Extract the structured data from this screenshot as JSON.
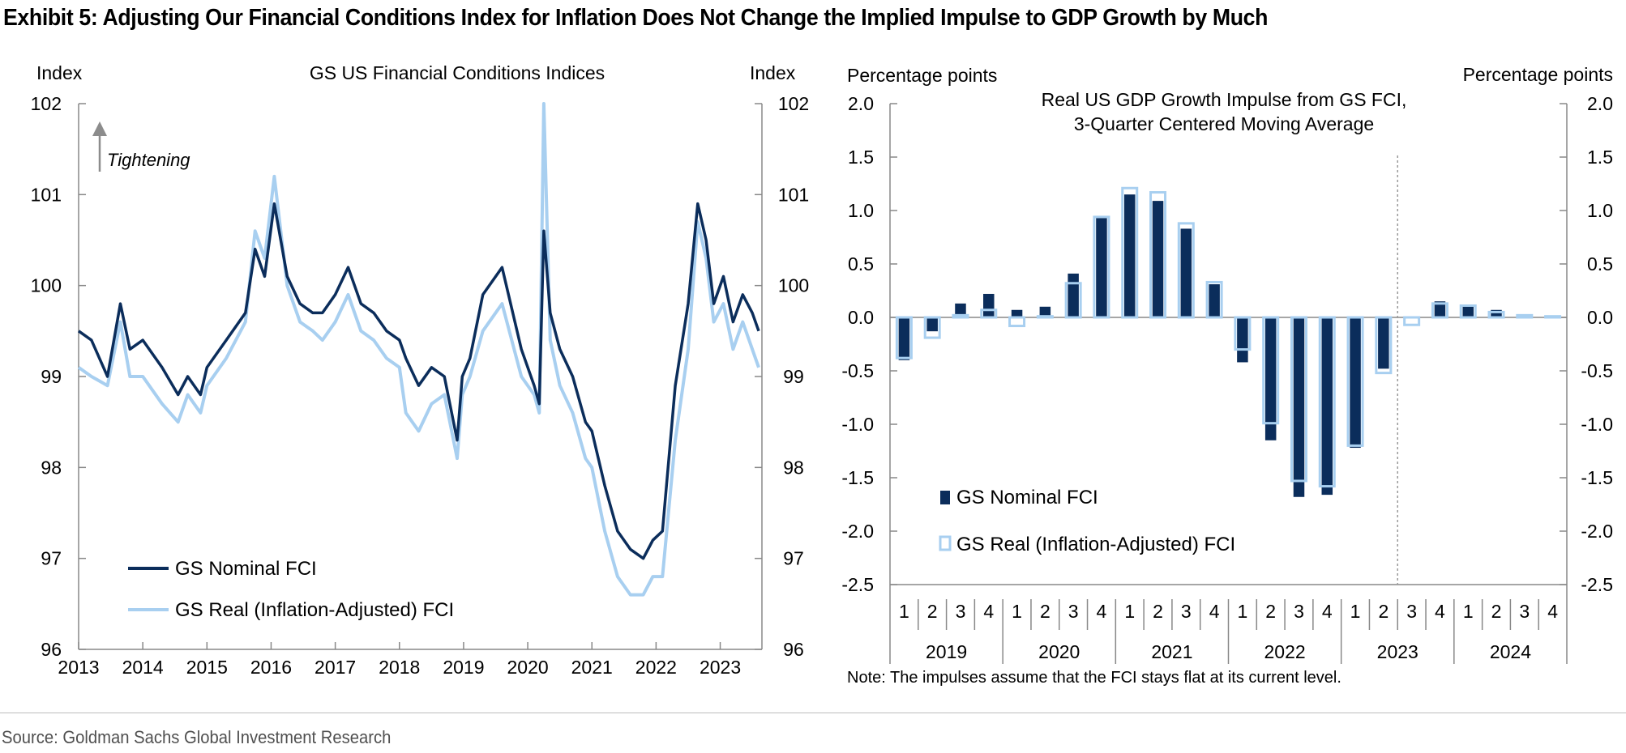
{
  "title": "Exhibit 5: Adjusting Our Financial Conditions Index for Inflation Does Not Change the Implied Impulse to GDP Growth by Much",
  "source": "Source: Goldman Sachs Global Investment Research",
  "colors": {
    "nominal": "#0b2d5b",
    "real": "#a8cff0",
    "axis": "#888888",
    "arrow": "#8c8c8c"
  },
  "chart_data": [
    {
      "type": "line",
      "title": "GS US Financial Conditions Indices",
      "ylabel_left": "Index",
      "ylabel_right": "Index",
      "annotation": "Tightening",
      "ylim": [
        96,
        102
      ],
      "yticks": [
        "96",
        "97",
        "98",
        "99",
        "100",
        "101",
        "102"
      ],
      "xlim": [
        2013,
        2023.65
      ],
      "xticks": [
        "2013",
        "2014",
        "2015",
        "2016",
        "2017",
        "2018",
        "2019",
        "2020",
        "2021",
        "2022",
        "2023"
      ],
      "legend_position": "bottom-left",
      "series": [
        {
          "name": "GS Nominal FCI",
          "x": [
            2013,
            2013.2,
            2013.45,
            2013.65,
            2013.8,
            2014,
            2014.3,
            2014.55,
            2014.7,
            2014.9,
            2015,
            2015.3,
            2015.6,
            2015.75,
            2015.9,
            2016.05,
            2016.25,
            2016.45,
            2016.65,
            2016.8,
            2017,
            2017.2,
            2017.4,
            2017.6,
            2017.8,
            2018,
            2018.1,
            2018.3,
            2018.5,
            2018.7,
            2018.9,
            2018.98,
            2019.1,
            2019.3,
            2019.6,
            2019.9,
            2020.1,
            2020.18,
            2020.25,
            2020.35,
            2020.5,
            2020.7,
            2020.9,
            2021,
            2021.2,
            2021.4,
            2021.6,
            2021.8,
            2021.95,
            2022.1,
            2022.3,
            2022.5,
            2022.65,
            2022.78,
            2022.9,
            2023.05,
            2023.2,
            2023.35,
            2023.5,
            2023.6
          ],
          "values": [
            99.5,
            99.4,
            99.0,
            99.8,
            99.3,
            99.4,
            99.1,
            98.8,
            99.0,
            98.8,
            99.1,
            99.4,
            99.7,
            100.4,
            100.1,
            100.9,
            100.1,
            99.8,
            99.7,
            99.7,
            99.9,
            100.2,
            99.8,
            99.7,
            99.5,
            99.4,
            99.2,
            98.9,
            99.1,
            99.0,
            98.3,
            99.0,
            99.2,
            99.9,
            100.2,
            99.3,
            98.9,
            98.7,
            100.6,
            99.7,
            99.3,
            99.0,
            98.5,
            98.4,
            97.8,
            97.3,
            97.1,
            97.0,
            97.2,
            97.3,
            98.9,
            99.8,
            100.9,
            100.5,
            99.8,
            100.1,
            99.6,
            99.9,
            99.7,
            99.5
          ]
        },
        {
          "name": "GS Real (Inflation-Adjusted) FCI",
          "x": [
            2013,
            2013.2,
            2013.45,
            2013.65,
            2013.8,
            2014,
            2014.3,
            2014.55,
            2014.7,
            2014.9,
            2015,
            2015.3,
            2015.6,
            2015.75,
            2015.9,
            2016.05,
            2016.25,
            2016.45,
            2016.65,
            2016.8,
            2017,
            2017.2,
            2017.4,
            2017.6,
            2017.8,
            2018,
            2018.1,
            2018.3,
            2018.5,
            2018.7,
            2018.9,
            2018.98,
            2019.1,
            2019.3,
            2019.6,
            2019.9,
            2020.1,
            2020.18,
            2020.25,
            2020.35,
            2020.5,
            2020.7,
            2020.9,
            2021,
            2021.2,
            2021.4,
            2021.6,
            2021.8,
            2021.95,
            2022.1,
            2022.3,
            2022.5,
            2022.65,
            2022.78,
            2022.9,
            2023.05,
            2023.2,
            2023.35,
            2023.5,
            2023.6
          ],
          "values": [
            99.1,
            99.0,
            98.9,
            99.6,
            99.0,
            99.0,
            98.7,
            98.5,
            98.8,
            98.6,
            98.9,
            99.2,
            99.6,
            100.6,
            100.3,
            101.2,
            100.0,
            99.6,
            99.5,
            99.4,
            99.6,
            99.9,
            99.5,
            99.4,
            99.2,
            99.1,
            98.6,
            98.4,
            98.7,
            98.8,
            98.1,
            98.8,
            99.0,
            99.5,
            99.8,
            99.0,
            98.8,
            98.6,
            102.0,
            99.4,
            98.9,
            98.6,
            98.1,
            98.0,
            97.3,
            96.8,
            96.6,
            96.6,
            96.8,
            96.8,
            98.3,
            99.3,
            100.7,
            100.3,
            99.6,
            99.8,
            99.3,
            99.6,
            99.3,
            99.1
          ]
        }
      ]
    },
    {
      "type": "bar",
      "title": "Real US GDP Growth Impulse from GS FCI,",
      "subtitle": "3-Quarter Centered Moving Average",
      "ylabel_left": "Percentage points",
      "ylabel_right": "Percentage points",
      "note": "Note: The impulses assume that the FCI stays flat at its current level.",
      "ylim": [
        -2.5,
        2.0
      ],
      "yticks": [
        "-2.5",
        "-2.0",
        "-1.5",
        "-1.0",
        "-0.5",
        "0.0",
        "0.5",
        "1.0",
        "1.5",
        "2.0"
      ],
      "quarters": [
        "1",
        "2",
        "3",
        "4",
        "1",
        "2",
        "3",
        "4",
        "1",
        "2",
        "3",
        "4",
        "1",
        "2",
        "3",
        "4",
        "1",
        "2",
        "3",
        "4",
        "1",
        "2",
        "3",
        "4"
      ],
      "years": [
        "2019",
        "2020",
        "2021",
        "2022",
        "2023",
        "2024"
      ],
      "legend_position": "bottom-left",
      "series": [
        {
          "name": "GS Nominal FCI",
          "values": [
            -0.4,
            -0.13,
            0.13,
            0.22,
            0.07,
            0.1,
            0.41,
            0.93,
            1.15,
            1.09,
            0.83,
            0.31,
            -0.42,
            -1.15,
            -1.68,
            -1.66,
            -1.22,
            -0.48,
            0,
            0.15,
            0.12,
            0.07,
            0.02,
            0.01
          ]
        },
        {
          "name": "GS Real (Inflation-Adjusted) FCI",
          "values": [
            -0.38,
            -0.19,
            0.02,
            0.07,
            -0.08,
            0.01,
            0.32,
            0.94,
            1.21,
            1.17,
            0.88,
            0.33,
            -0.3,
            -0.99,
            -1.53,
            -1.58,
            -1.2,
            -0.52,
            -0.07,
            0.13,
            0.11,
            0.05,
            0.02,
            0.01
          ]
        }
      ]
    }
  ]
}
